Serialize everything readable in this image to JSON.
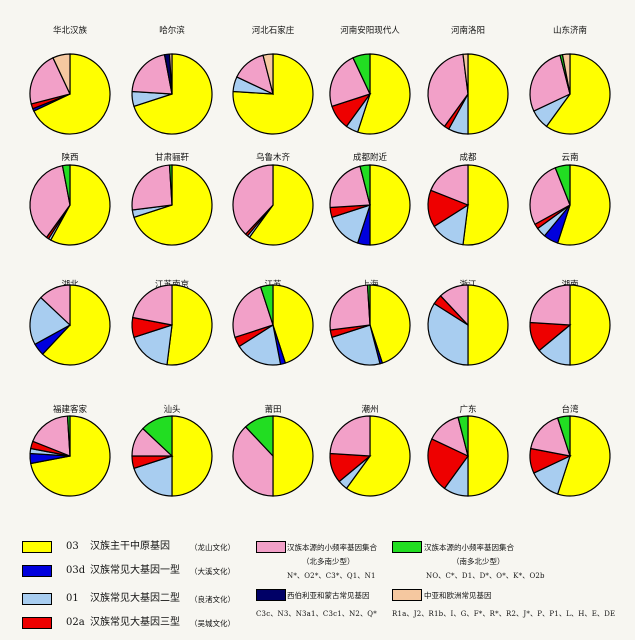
{
  "colors": {
    "yellow": "#ffff00",
    "blue": "#0000dd",
    "lightblue": "#a8cdf0",
    "red": "#ee0000",
    "pink": "#f2a0c8",
    "green": "#22dd22",
    "navy": "#000066",
    "peach": "#f5c8a0"
  },
  "chart_data": {
    "type": "pie",
    "slice_order": [
      "03",
      "03d",
      "01",
      "02a",
      "pink",
      "green",
      "navy",
      "peach"
    ],
    "pies": [
      {
        "label": "华北汉族",
        "values": {
          "03": 68,
          "03d": 1,
          "01": 0,
          "02a": 2,
          "pink": 22,
          "green": 0,
          "navy": 0,
          "peach": 7
        }
      },
      {
        "label": "哈尔滨",
        "values": {
          "03": 70,
          "03d": 0,
          "01": 6,
          "02a": 0,
          "pink": 21,
          "green": 0,
          "navy": 2,
          "peach": 1
        }
      },
      {
        "label": "河北石家庄",
        "values": {
          "03": 76,
          "03d": 0,
          "01": 6,
          "02a": 0,
          "pink": 14,
          "green": 0,
          "navy": 0,
          "peach": 4
        }
      },
      {
        "label": "河南安阳现代人",
        "values": {
          "03": 55,
          "03d": 0,
          "01": 5,
          "02a": 10,
          "pink": 23,
          "green": 7,
          "navy": 0,
          "peach": 0
        }
      },
      {
        "label": "河南洛阳",
        "values": {
          "03": 50,
          "03d": 0,
          "01": 8,
          "02a": 2,
          "pink": 38,
          "green": 0,
          "navy": 0,
          "peach": 2
        }
      },
      {
        "label": "山东济南",
        "values": {
          "03": 60,
          "03d": 0,
          "01": 8,
          "02a": 0,
          "pink": 28,
          "green": 1,
          "navy": 0,
          "peach": 3
        }
      },
      {
        "label": "陕西",
        "values": {
          "03": 58,
          "03d": 0,
          "01": 1,
          "02a": 1,
          "pink": 37,
          "green": 3,
          "navy": 0,
          "peach": 0
        }
      },
      {
        "label": "甘肃骊靬",
        "values": {
          "03": 70,
          "03d": 0,
          "01": 3,
          "02a": 0,
          "pink": 26,
          "green": 1,
          "navy": 0,
          "peach": 0
        }
      },
      {
        "label": "乌鲁木齐",
        "values": {
          "03": 60,
          "03d": 0,
          "01": 1,
          "02a": 1,
          "pink": 38,
          "green": 0,
          "navy": 0,
          "peach": 0
        }
      },
      {
        "label": "成都附近",
        "values": {
          "03": 50,
          "03d": 5,
          "01": 15,
          "02a": 4,
          "pink": 22,
          "green": 4,
          "navy": 0,
          "peach": 0
        }
      },
      {
        "label": "成都",
        "values": {
          "03": 52,
          "03d": 0,
          "01": 14,
          "02a": 15,
          "pink": 19,
          "green": 0,
          "navy": 0,
          "peach": 0
        }
      },
      {
        "label": "云南",
        "values": {
          "03": 55,
          "03d": 6,
          "01": 4,
          "02a": 2,
          "pink": 27,
          "green": 6,
          "navy": 0,
          "peach": 0
        }
      },
      {
        "label": "湖北",
        "values": {
          "03": 62,
          "03d": 5,
          "01": 20,
          "02a": 0,
          "pink": 13,
          "green": 0,
          "navy": 0,
          "peach": 0
        }
      },
      {
        "label": "江苏南京",
        "values": {
          "03": 52,
          "03d": 0,
          "01": 18,
          "02a": 8,
          "pink": 22,
          "green": 0,
          "navy": 0,
          "peach": 0
        }
      },
      {
        "label": "江苏",
        "values": {
          "03": 45,
          "03d": 2,
          "01": 19,
          "02a": 4,
          "pink": 25,
          "green": 5,
          "navy": 0,
          "peach": 0
        }
      },
      {
        "label": "上海",
        "values": {
          "03": 45,
          "03d": 1,
          "01": 24,
          "02a": 3,
          "pink": 26,
          "green": 1,
          "navy": 0,
          "peach": 0
        }
      },
      {
        "label": "浙江",
        "values": {
          "03": 50,
          "03d": 0,
          "01": 34,
          "02a": 4,
          "pink": 12,
          "green": 0,
          "navy": 0,
          "peach": 0
        }
      },
      {
        "label": "湖南",
        "values": {
          "03": 50,
          "03d": 0,
          "01": 14,
          "02a": 12,
          "pink": 24,
          "green": 0,
          "navy": 0,
          "peach": 0
        }
      },
      {
        "label": "福建客家",
        "values": {
          "03": 72,
          "03d": 4,
          "01": 2,
          "02a": 3,
          "pink": 18,
          "green": 1,
          "navy": 0,
          "peach": 0
        }
      },
      {
        "label": "汕头",
        "values": {
          "03": 50,
          "03d": 0,
          "01": 20,
          "02a": 5,
          "pink": 12,
          "green": 13,
          "navy": 0,
          "peach": 0
        }
      },
      {
        "label": "莆田",
        "values": {
          "03": 50,
          "03d": 0,
          "01": 0,
          "02a": 0,
          "pink": 38,
          "green": 12,
          "navy": 0,
          "peach": 0
        }
      },
      {
        "label": "潮州",
        "values": {
          "03": 60,
          "03d": 0,
          "01": 4,
          "02a": 12,
          "pink": 24,
          "green": 0,
          "navy": 0,
          "peach": 0
        }
      },
      {
        "label": "广东",
        "values": {
          "03": 50,
          "03d": 0,
          "01": 10,
          "02a": 22,
          "pink": 14,
          "green": 4,
          "navy": 0,
          "peach": 0
        }
      },
      {
        "label": "台湾",
        "values": {
          "03": 55,
          "03d": 0,
          "01": 13,
          "02a": 10,
          "pink": 17,
          "green": 5,
          "navy": 0,
          "peach": 0
        }
      }
    ]
  },
  "legend": {
    "items": [
      {
        "key": "03",
        "color": "yellow",
        "code": "03",
        "label": "汉族主干中原基因",
        "culture": "（龙山文化）"
      },
      {
        "key": "03d",
        "color": "blue",
        "code": "03d",
        "label": "汉族常见大基因一型",
        "culture": "（大溪文化）"
      },
      {
        "key": "01",
        "color": "lightblue",
        "code": "01",
        "label": "汉族常见大基因二型",
        "culture": "（良渚文化）"
      },
      {
        "key": "02a",
        "color": "red",
        "code": "02a",
        "label": "汉族常见大基因三型",
        "culture": "（吴城文化）"
      }
    ],
    "pink": {
      "label": "汉族本源的小频率基因集合",
      "sub": "（北多南少型）",
      "haplos": "N*、O2*、C3*、Q1、N1"
    },
    "green": {
      "label": "汉族本源的小频率基因集合",
      "sub": "（南多北少型）",
      "haplos": "NO、C*、D1、D*、O*、K*、O2b"
    },
    "navy": {
      "label": "西伯利亚和蒙古常见基因",
      "haplos": "C3c、N3、N3a1、C3c1、N2、Q*"
    },
    "peach": {
      "label": "中亚和欧洲常见基因",
      "haplos": "R1a、J2、R1b、I、G、F*、R*、R2、J*、P、P1、L、H、E、DE"
    }
  }
}
